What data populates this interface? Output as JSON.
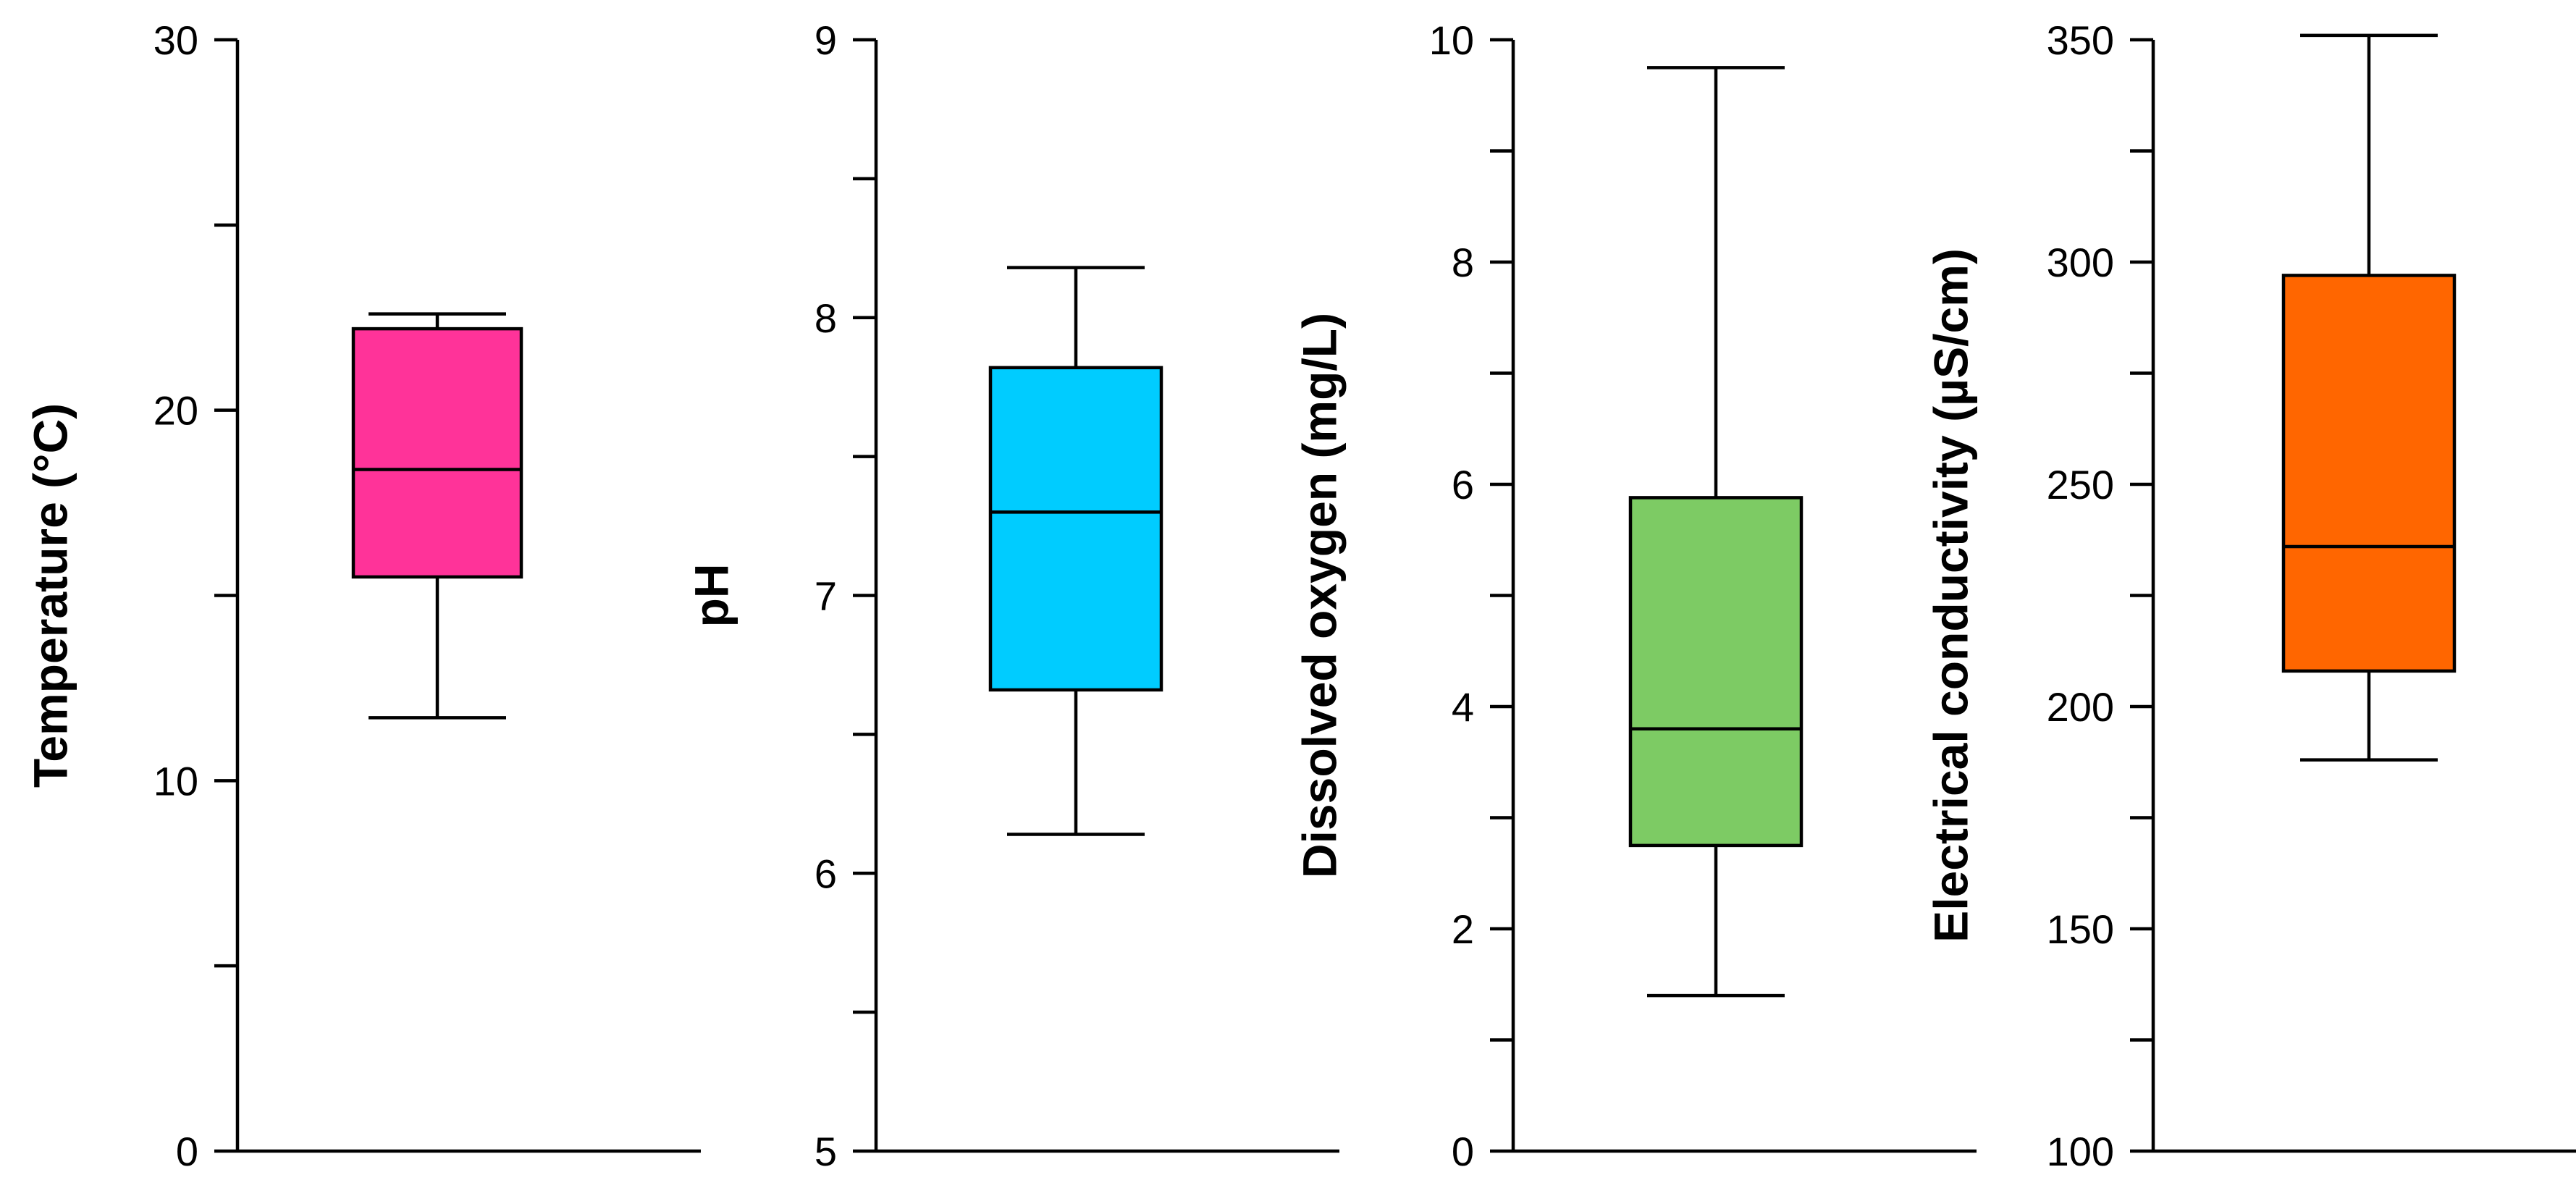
{
  "chart_data": [
    {
      "type": "box",
      "ylabel": "Temperature (°C)",
      "ylim": [
        0,
        30
      ],
      "major_ticks": [
        0,
        10,
        20,
        30
      ],
      "minor_ticks": [
        5,
        15,
        25
      ],
      "tick_labels": [
        "0",
        "10",
        "20",
        "30"
      ],
      "box": {
        "whisker_low": 11.7,
        "q1": 15.5,
        "median": 18.4,
        "q3": 22.2,
        "whisker_high": 22.6
      },
      "color": "#FF3399"
    },
    {
      "type": "box",
      "ylabel": "pH",
      "ylim": [
        5,
        9
      ],
      "major_ticks": [
        5,
        6,
        7,
        8,
        9
      ],
      "minor_ticks": [
        5.5,
        6.5,
        7.5,
        8.5
      ],
      "tick_labels": [
        "5",
        "6",
        "7",
        "8",
        "9"
      ],
      "box": {
        "whisker_low": 6.14,
        "q1": 6.66,
        "median": 7.3,
        "q3": 7.82,
        "whisker_high": 8.18
      },
      "color": "#00CCFF"
    },
    {
      "type": "box",
      "ylabel": "Dissolved oxygen (mg/L)",
      "ylim": [
        0,
        10
      ],
      "major_ticks": [
        0,
        2,
        4,
        6,
        8,
        10
      ],
      "minor_ticks": [
        1,
        3,
        5,
        7,
        9
      ],
      "tick_labels": [
        "0",
        "2",
        "4",
        "6",
        "8",
        "10"
      ],
      "box": {
        "whisker_low": 1.4,
        "q1": 2.75,
        "median": 3.8,
        "q3": 5.88,
        "whisker_high": 9.75
      },
      "color": "#7DCB64"
    },
    {
      "type": "box",
      "ylabel": "Electrical conductivity (µS/cm)",
      "ylim": [
        100,
        350
      ],
      "major_ticks": [
        100,
        150,
        200,
        250,
        300,
        350
      ],
      "minor_ticks": [
        125,
        175,
        225,
        275,
        325
      ],
      "tick_labels": [
        "100",
        "150",
        "200",
        "250",
        "300",
        "350"
      ],
      "box": {
        "whisker_low": 188,
        "q1": 208,
        "median": 236,
        "q3": 297,
        "whisker_high": 351
      },
      "color": "#FF6600"
    }
  ]
}
